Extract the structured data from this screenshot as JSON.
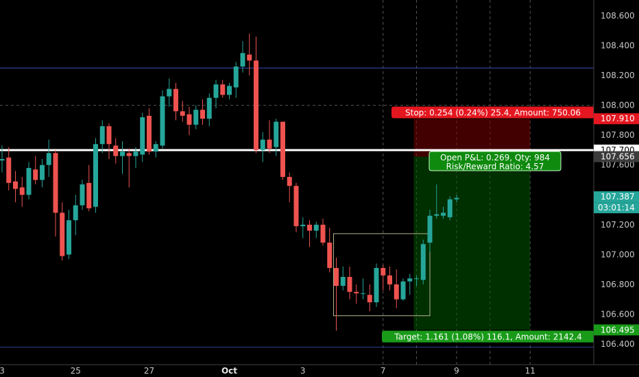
{
  "chart_data": {
    "type": "candlestick",
    "y_ticks": [
      "108.600",
      "108.400",
      "108.200",
      "108.000",
      "107.800",
      "107.600",
      "107.400",
      "107.200",
      "107.000",
      "106.800",
      "106.600",
      "106.400"
    ],
    "x_ticks": [
      {
        "label": "3",
        "i": 0
      },
      {
        "label": "25",
        "i": 11
      },
      {
        "label": "27",
        "i": 22
      },
      {
        "label": "Oct",
        "i": 34,
        "bold": true
      },
      {
        "label": "3",
        "i": 45
      },
      {
        "label": "7",
        "i": 57
      },
      {
        "label": "9",
        "i": 68
      },
      {
        "label": "11",
        "i": 79
      }
    ],
    "ylim": [
      106.35,
      108.72
    ],
    "candles": [
      [
        107.63,
        107.73,
        107.55,
        107.64
      ],
      [
        107.65,
        107.72,
        107.43,
        107.48
      ],
      [
        107.49,
        107.56,
        107.35,
        107.44
      ],
      [
        107.45,
        107.52,
        107.32,
        107.4
      ],
      [
        107.4,
        107.62,
        107.37,
        107.58
      ],
      [
        107.57,
        107.66,
        107.47,
        107.5
      ],
      [
        107.5,
        107.64,
        107.45,
        107.6
      ],
      [
        107.6,
        107.77,
        107.52,
        107.68
      ],
      [
        107.68,
        107.7,
        107.12,
        107.28
      ],
      [
        107.28,
        107.35,
        106.96,
        106.99
      ],
      [
        107.0,
        107.3,
        106.97,
        107.23
      ],
      [
        107.23,
        107.4,
        107.13,
        107.33
      ],
      [
        107.33,
        107.5,
        107.3,
        107.47
      ],
      [
        107.48,
        107.6,
        107.29,
        107.31
      ],
      [
        107.32,
        107.78,
        107.28,
        107.74
      ],
      [
        107.74,
        107.9,
        107.68,
        107.86
      ],
      [
        107.86,
        107.88,
        107.64,
        107.74
      ],
      [
        107.73,
        107.78,
        107.61,
        107.66
      ],
      [
        107.66,
        107.76,
        107.54,
        107.69
      ],
      [
        107.68,
        107.71,
        107.45,
        107.66
      ],
      [
        107.66,
        107.72,
        107.58,
        107.69
      ],
      [
        107.67,
        107.95,
        107.62,
        107.92
      ],
      [
        107.93,
        107.98,
        107.67,
        107.69
      ],
      [
        107.69,
        107.76,
        107.65,
        107.74
      ],
      [
        107.73,
        108.1,
        107.71,
        108.06
      ],
      [
        108.06,
        108.18,
        107.99,
        108.11
      ],
      [
        108.11,
        108.15,
        107.9,
        107.96
      ],
      [
        107.96,
        108.03,
        107.89,
        107.93
      ],
      [
        107.94,
        107.99,
        107.8,
        107.87
      ],
      [
        107.87,
        108.0,
        107.84,
        107.97
      ],
      [
        107.97,
        108.04,
        107.87,
        107.91
      ],
      [
        107.91,
        108.08,
        107.86,
        108.05
      ],
      [
        108.05,
        108.17,
        107.98,
        108.14
      ],
      [
        108.14,
        108.17,
        108.05,
        108.07
      ],
      [
        108.07,
        108.15,
        108.04,
        108.13
      ],
      [
        108.12,
        108.29,
        108.05,
        108.26
      ],
      [
        108.26,
        108.43,
        108.22,
        108.35
      ],
      [
        108.34,
        108.48,
        108.2,
        108.3
      ],
      [
        108.3,
        108.46,
        107.68,
        107.7
      ],
      [
        107.7,
        107.82,
        107.62,
        107.77
      ],
      [
        107.77,
        107.9,
        107.68,
        107.71
      ],
      [
        107.72,
        107.91,
        107.66,
        107.89
      ],
      [
        107.89,
        107.89,
        107.5,
        107.52
      ],
      [
        107.52,
        107.55,
        107.35,
        107.46
      ],
      [
        107.46,
        107.48,
        107.15,
        107.19
      ],
      [
        107.19,
        107.25,
        107.11,
        107.2
      ],
      [
        107.2,
        107.23,
        107.05,
        107.16
      ],
      [
        107.16,
        107.22,
        107.11,
        107.2
      ],
      [
        107.2,
        107.24,
        107.06,
        107.08
      ],
      [
        107.08,
        107.18,
        106.88,
        106.91
      ],
      [
        106.91,
        106.98,
        106.49,
        106.79
      ],
      [
        106.79,
        106.92,
        106.76,
        106.85
      ],
      [
        106.85,
        106.92,
        106.7,
        106.75
      ],
      [
        106.75,
        106.8,
        106.67,
        106.74
      ],
      [
        106.74,
        106.84,
        106.7,
        106.74
      ],
      [
        106.73,
        106.8,
        106.62,
        106.68
      ],
      [
        106.68,
        106.94,
        106.65,
        106.91
      ],
      [
        106.91,
        106.93,
        106.76,
        106.86
      ],
      [
        106.86,
        106.92,
        106.76,
        106.8
      ],
      [
        106.8,
        106.9,
        106.64,
        106.7
      ],
      [
        106.7,
        106.84,
        106.69,
        106.82
      ],
      [
        106.82,
        106.87,
        106.73,
        106.84
      ],
      [
        106.84,
        106.86,
        106.79,
        106.84
      ],
      [
        106.83,
        107.1,
        106.8,
        107.07
      ],
      [
        107.08,
        107.3,
        107.02,
        107.26
      ],
      [
        107.26,
        107.47,
        107.24,
        107.27
      ],
      [
        107.26,
        107.32,
        107.24,
        107.28
      ],
      [
        107.25,
        107.39,
        107.23,
        107.37
      ],
      [
        107.37,
        107.4,
        107.35,
        107.38
      ]
    ],
    "horizontal_lines": [
      {
        "value": 108.25,
        "color": "#3d4fb8",
        "width": 1
      },
      {
        "value": 107.7,
        "color": "#ffffff",
        "width": 3
      },
      {
        "value": 106.38,
        "color": "#2f3f8a",
        "width": 1
      }
    ],
    "dashed_hline": 108.0,
    "dashed_vlines_i": [
      57,
      62,
      68,
      73,
      79
    ],
    "rectangle": {
      "i_start": 50,
      "i_end": 64,
      "top": 107.14,
      "bottom": 106.59,
      "color": "#b5b58a"
    },
    "position": {
      "i_start": 62,
      "i_end": 79,
      "entry": 107.656,
      "stop": 107.91,
      "target": 106.495,
      "stop_label": "Stop: 0.254 (0.24%) 25.4, Amount: 750.06",
      "target_label": "Target: 1.161 (1.08%) 116.1, Amount: 2142.4",
      "pnl_line1": "Open P&L: 0.269, Qty: 984",
      "pnl_line2": "Risk/Reward Ratio: 4.57"
    },
    "price_tags": [
      {
        "value": 107.91,
        "label": "107.910",
        "bg": "#e4161f",
        "fg": "#ffffff"
      },
      {
        "value": 107.7,
        "label": "107.700",
        "bg": "#ffffff",
        "fg": "#000000"
      },
      {
        "value": 107.656,
        "label": "107.656",
        "bg": "#3c3c3c",
        "fg": "#ffffff"
      },
      {
        "value": 107.387,
        "label": "107.387",
        "bg": "#26a69a",
        "fg": "#ffffff"
      },
      {
        "value": 106.495,
        "label": "106.495",
        "bg": "#199b19",
        "fg": "#ffffff"
      }
    ],
    "countdown": "03:01:14",
    "colors": {
      "up": "#26a69a",
      "down": "#ef5350"
    }
  }
}
